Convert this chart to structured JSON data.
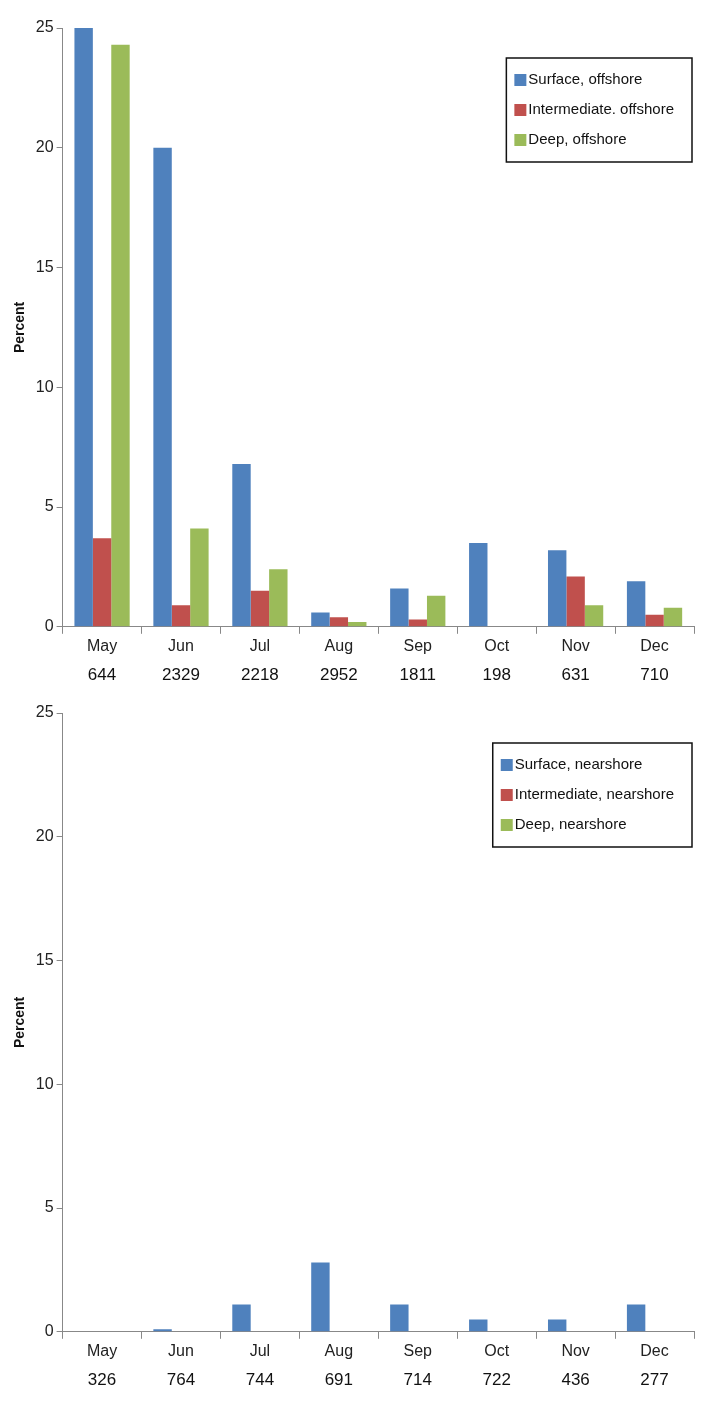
{
  "chart_data": [
    {
      "type": "bar",
      "ylabel": "Percent",
      "categories": [
        "May",
        "Jun",
        "Jul",
        "Aug",
        "Sep",
        "Oct",
        "Nov",
        "Dec"
      ],
      "series": [
        {
          "name": "Surface, offshore",
          "color": "#4f81bd",
          "values": [
            25,
            20,
            6.8,
            0.6,
            1.6,
            3.5,
            3.2,
            1.9
          ]
        },
        {
          "name": "Intermediate. offshore",
          "color": "#c0504d",
          "values": [
            3.7,
            0.9,
            1.5,
            0.4,
            0.3,
            0,
            2.1,
            0.5
          ]
        },
        {
          "name": "Deep, offshore",
          "color": "#9bbb59",
          "values": [
            24.3,
            4.1,
            2.4,
            0.2,
            1.3,
            0,
            0.9,
            0.8
          ]
        }
      ],
      "ylim": [
        0,
        25
      ],
      "yticks": [
        0,
        5,
        10,
        15,
        20,
        25
      ],
      "grid": false,
      "legend": "top right",
      "annotations": [
        "644",
        "2329",
        "2218",
        "2952",
        "1811",
        "198",
        "631",
        "710"
      ]
    },
    {
      "type": "bar",
      "ylabel": "Percent",
      "categories": [
        "May",
        "Jun",
        "Jul",
        "Aug",
        "Sep",
        "Oct",
        "Nov",
        "Dec"
      ],
      "series": [
        {
          "name": "Surface, nearshore",
          "color": "#4f81bd",
          "values": [
            0,
            0.1,
            1.1,
            2.8,
            1.1,
            0.5,
            0.5,
            1.1
          ]
        },
        {
          "name": "Intermediate, nearshore",
          "color": "#c0504d",
          "values": [
            0,
            0,
            0,
            0,
            0,
            0,
            0,
            0
          ]
        },
        {
          "name": "Deep, nearshore",
          "color": "#9bbb59",
          "values": [
            0,
            0,
            0,
            0,
            0,
            0,
            0,
            0
          ]
        }
      ],
      "ylim": [
        0,
        25
      ],
      "yticks": [
        0,
        5,
        10,
        15,
        20,
        25
      ],
      "grid": false,
      "legend": "top right",
      "annotations": [
        "326",
        "764",
        "744",
        "691",
        "714",
        "722",
        "436",
        "277"
      ]
    }
  ]
}
